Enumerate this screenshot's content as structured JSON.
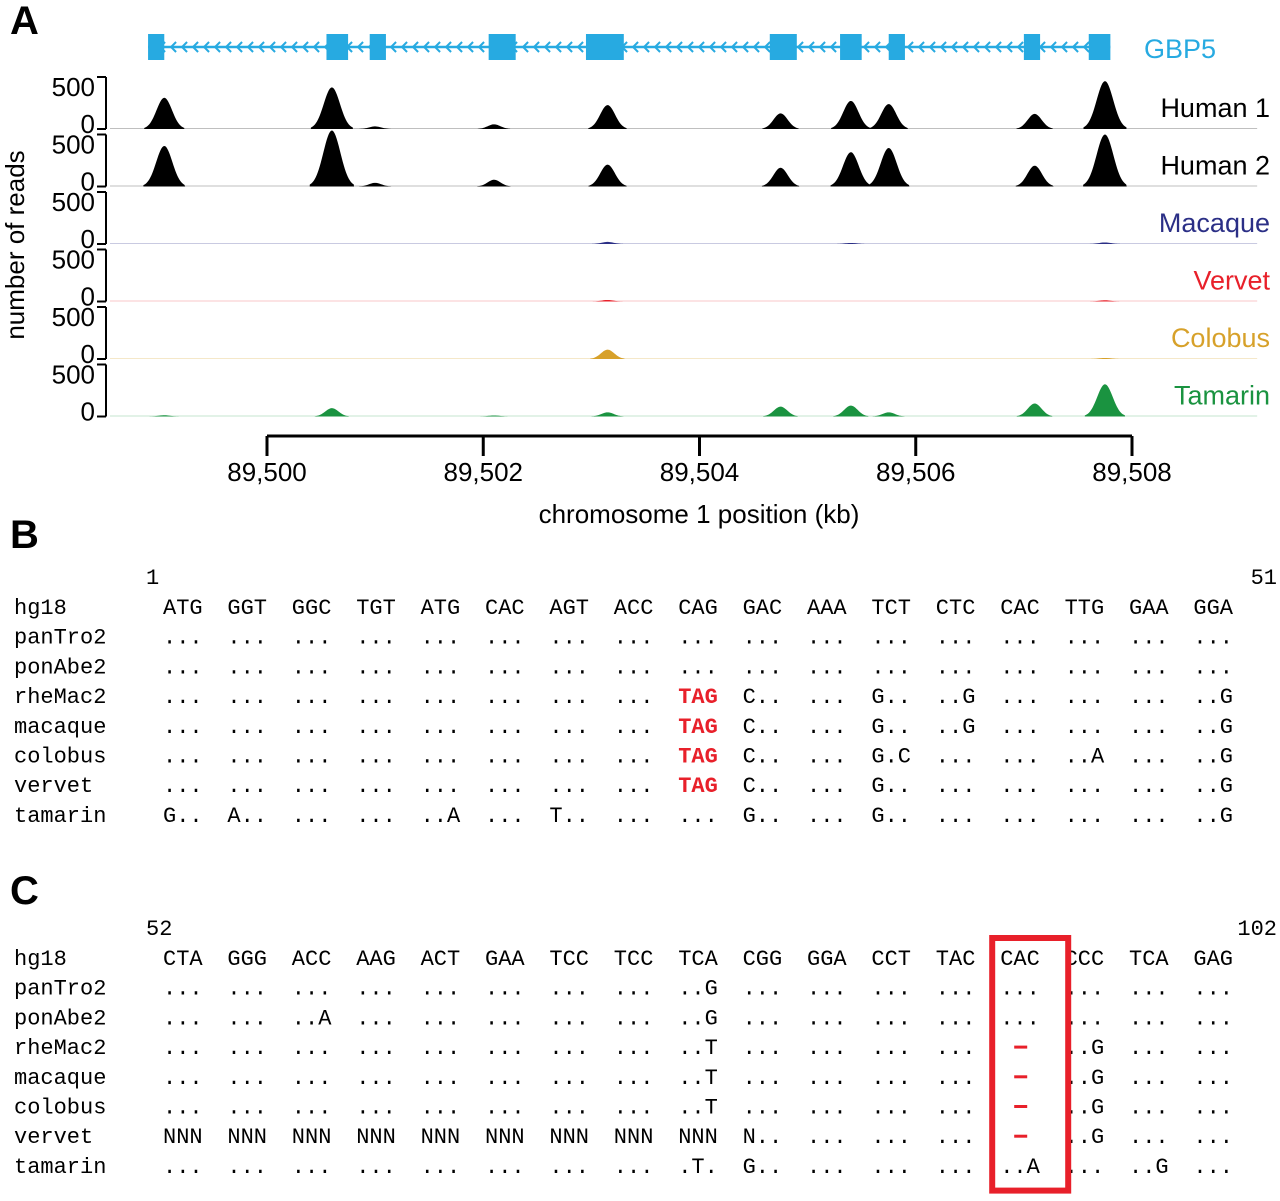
{
  "panels": {
    "a": "A",
    "b": "B",
    "c": "C"
  },
  "colors": {
    "gene": "#27aae1",
    "human": "#000000",
    "macaque": "#2b2f86",
    "vervet": "#e8202a",
    "colobus": "#d7a12a",
    "tamarin": "#1a9340",
    "highlight": "#e8202a"
  },
  "chart_data": {
    "type": "area",
    "gene": {
      "name": "GBP5",
      "strand": "minus",
      "exons": [
        [
          89498.9,
          89499.05
        ],
        [
          89500.55,
          89500.75
        ],
        [
          89500.95,
          89501.1
        ],
        [
          89502.05,
          89502.3
        ],
        [
          89502.95,
          89503.3
        ],
        [
          89504.65,
          89504.9
        ],
        [
          89505.3,
          89505.5
        ],
        [
          89505.75,
          89505.9
        ],
        [
          89507.0,
          89507.15
        ],
        [
          89507.6,
          89507.8
        ]
      ]
    },
    "ylabel": "number of reads",
    "xlabel": "chromosome 1 position (kb)",
    "x_ticks": [
      89500,
      89502,
      89504,
      89506,
      89508
    ],
    "x_tick_labels": [
      "89,500",
      "89,502",
      "89,504",
      "89,506",
      "89,508"
    ],
    "xlim": [
      89498.5,
      89509.25
    ],
    "ylim": [
      0,
      500
    ],
    "y_tick_labels": [
      "500",
      "0"
    ],
    "tracks": [
      {
        "name": "Human 1",
        "color": "#000000",
        "peaks": [
          [
            89499.05,
            300
          ],
          [
            89500.6,
            400
          ],
          [
            89501.0,
            25
          ],
          [
            89502.1,
            45
          ],
          [
            89503.15,
            230
          ],
          [
            89504.75,
            150
          ],
          [
            89505.4,
            270
          ],
          [
            89505.75,
            240
          ],
          [
            89507.1,
            145
          ],
          [
            89507.75,
            460
          ]
        ]
      },
      {
        "name": "Human 2",
        "color": "#000000",
        "peaks": [
          [
            89499.05,
            390
          ],
          [
            89500.6,
            540
          ],
          [
            89501.0,
            35
          ],
          [
            89502.1,
            65
          ],
          [
            89503.15,
            210
          ],
          [
            89504.75,
            180
          ],
          [
            89505.4,
            330
          ],
          [
            89505.75,
            370
          ],
          [
            89507.1,
            200
          ],
          [
            89507.75,
            500
          ]
        ]
      },
      {
        "name": "Macaque",
        "color": "#2b2f86",
        "peaks": [
          [
            89503.15,
            20
          ],
          [
            89505.4,
            10
          ],
          [
            89507.75,
            15
          ]
        ]
      },
      {
        "name": "Vervet",
        "color": "#e8202a",
        "peaks": [
          [
            89503.15,
            15
          ],
          [
            89507.75,
            12
          ]
        ]
      },
      {
        "name": "Colobus",
        "color": "#d7a12a",
        "peaks": [
          [
            89503.15,
            90
          ],
          [
            89507.75,
            10
          ]
        ]
      },
      {
        "name": "Tamarin",
        "color": "#1a9340",
        "peaks": [
          [
            89499.05,
            12
          ],
          [
            89500.6,
            80
          ],
          [
            89502.1,
            10
          ],
          [
            89503.15,
            40
          ],
          [
            89504.75,
            95
          ],
          [
            89505.4,
            105
          ],
          [
            89505.75,
            40
          ],
          [
            89507.1,
            125
          ],
          [
            89507.75,
            310
          ]
        ]
      }
    ]
  },
  "alignments": {
    "panel_b": {
      "start": "1",
      "end": "51",
      "rows": [
        {
          "species": "hg18",
          "codons": [
            "ATG",
            "GGT",
            "GGC",
            "TGT",
            "ATG",
            "CAC",
            "AGT",
            "ACC",
            "CAG",
            "GAC",
            "AAA",
            "TCT",
            "CTC",
            "CAC",
            "TTG",
            "GAA",
            "GGA"
          ]
        },
        {
          "species": "panTro2",
          "codons": [
            "...",
            "...",
            "...",
            "...",
            "...",
            "...",
            "...",
            "...",
            "...",
            "...",
            "...",
            "...",
            "...",
            "...",
            "...",
            "...",
            "..."
          ]
        },
        {
          "species": "ponAbe2",
          "codons": [
            "...",
            "...",
            "...",
            "...",
            "...",
            "...",
            "...",
            "...",
            "...",
            "...",
            "...",
            "...",
            "...",
            "...",
            "...",
            "...",
            "..."
          ]
        },
        {
          "species": "rheMac2",
          "codons": [
            "...",
            "...",
            "...",
            "...",
            "...",
            "...",
            "...",
            "...",
            "TAG",
            "C..",
            "...",
            "G..",
            "..G",
            "...",
            "...",
            "...",
            "..G"
          ]
        },
        {
          "species": "macaque",
          "codons": [
            "...",
            "...",
            "...",
            "...",
            "...",
            "...",
            "...",
            "...",
            "TAG",
            "C..",
            "...",
            "G..",
            "..G",
            "...",
            "...",
            "...",
            "..G"
          ]
        },
        {
          "species": "colobus",
          "codons": [
            "...",
            "...",
            "...",
            "...",
            "...",
            "...",
            "...",
            "...",
            "TAG",
            "C..",
            "...",
            "G.C",
            "...",
            "...",
            "..A",
            "...",
            "..G"
          ]
        },
        {
          "species": "vervet",
          "codons": [
            "...",
            "...",
            "...",
            "...",
            "...",
            "...",
            "...",
            "...",
            "TAG",
            "C..",
            "...",
            "G..",
            "...",
            "...",
            "...",
            "...",
            "..G"
          ]
        },
        {
          "species": "tamarin",
          "codons": [
            "G..",
            "A..",
            "...",
            "...",
            "..A",
            "...",
            "T..",
            "...",
            "...",
            "G..",
            "...",
            "G..",
            "...",
            "...",
            "...",
            "...",
            "..G"
          ]
        }
      ],
      "stop_codon": "TAG"
    },
    "panel_c": {
      "start": "52",
      "end": "102",
      "rows": [
        {
          "species": "hg18",
          "codons": [
            "CTA",
            "GGG",
            "ACC",
            "AAG",
            "ACT",
            "GAA",
            "TCC",
            "TCC",
            "TCA",
            "CGG",
            "GGA",
            "CCT",
            "TAC",
            "CAC",
            "CCC",
            "TCA",
            "GAG"
          ]
        },
        {
          "species": "panTro2",
          "codons": [
            "...",
            "...",
            "...",
            "...",
            "...",
            "...",
            "...",
            "...",
            "..G",
            "...",
            "...",
            "...",
            "...",
            "...",
            "...",
            "...",
            "..."
          ]
        },
        {
          "species": "ponAbe2",
          "codons": [
            "...",
            "...",
            "..A",
            "...",
            "...",
            "...",
            "...",
            "...",
            "..G",
            "...",
            "...",
            "...",
            "...",
            "...",
            "...",
            "...",
            "..."
          ]
        },
        {
          "species": "rheMac2",
          "codons": [
            "...",
            "...",
            "...",
            "...",
            "...",
            "...",
            "...",
            "...",
            "..T",
            "...",
            "...",
            "...",
            "...",
            "-",
            "..G",
            "...",
            "..."
          ]
        },
        {
          "species": "macaque",
          "codons": [
            "...",
            "...",
            "...",
            "...",
            "...",
            "...",
            "...",
            "...",
            "..T",
            "...",
            "...",
            "...",
            "...",
            "-",
            "..G",
            "...",
            "..."
          ]
        },
        {
          "species": "colobus",
          "codons": [
            "...",
            "...",
            "...",
            "...",
            "...",
            "...",
            "...",
            "...",
            "..T",
            "...",
            "...",
            "...",
            "...",
            "-",
            "..G",
            "...",
            "..."
          ]
        },
        {
          "species": "vervet",
          "codons": [
            "NNN",
            "NNN",
            "NNN",
            "NNN",
            "NNN",
            "NNN",
            "NNN",
            "NNN",
            "NNN",
            "N..",
            "...",
            "...",
            "...",
            "-",
            "..G",
            "...",
            "..."
          ]
        },
        {
          "species": "tamarin",
          "codons": [
            "...",
            "...",
            "...",
            "...",
            "...",
            "...",
            "...",
            "...",
            ".T.",
            "G..",
            "...",
            "...",
            "...",
            "..A",
            "...",
            "..G",
            "..."
          ]
        }
      ],
      "highlight_column": 13
    }
  }
}
